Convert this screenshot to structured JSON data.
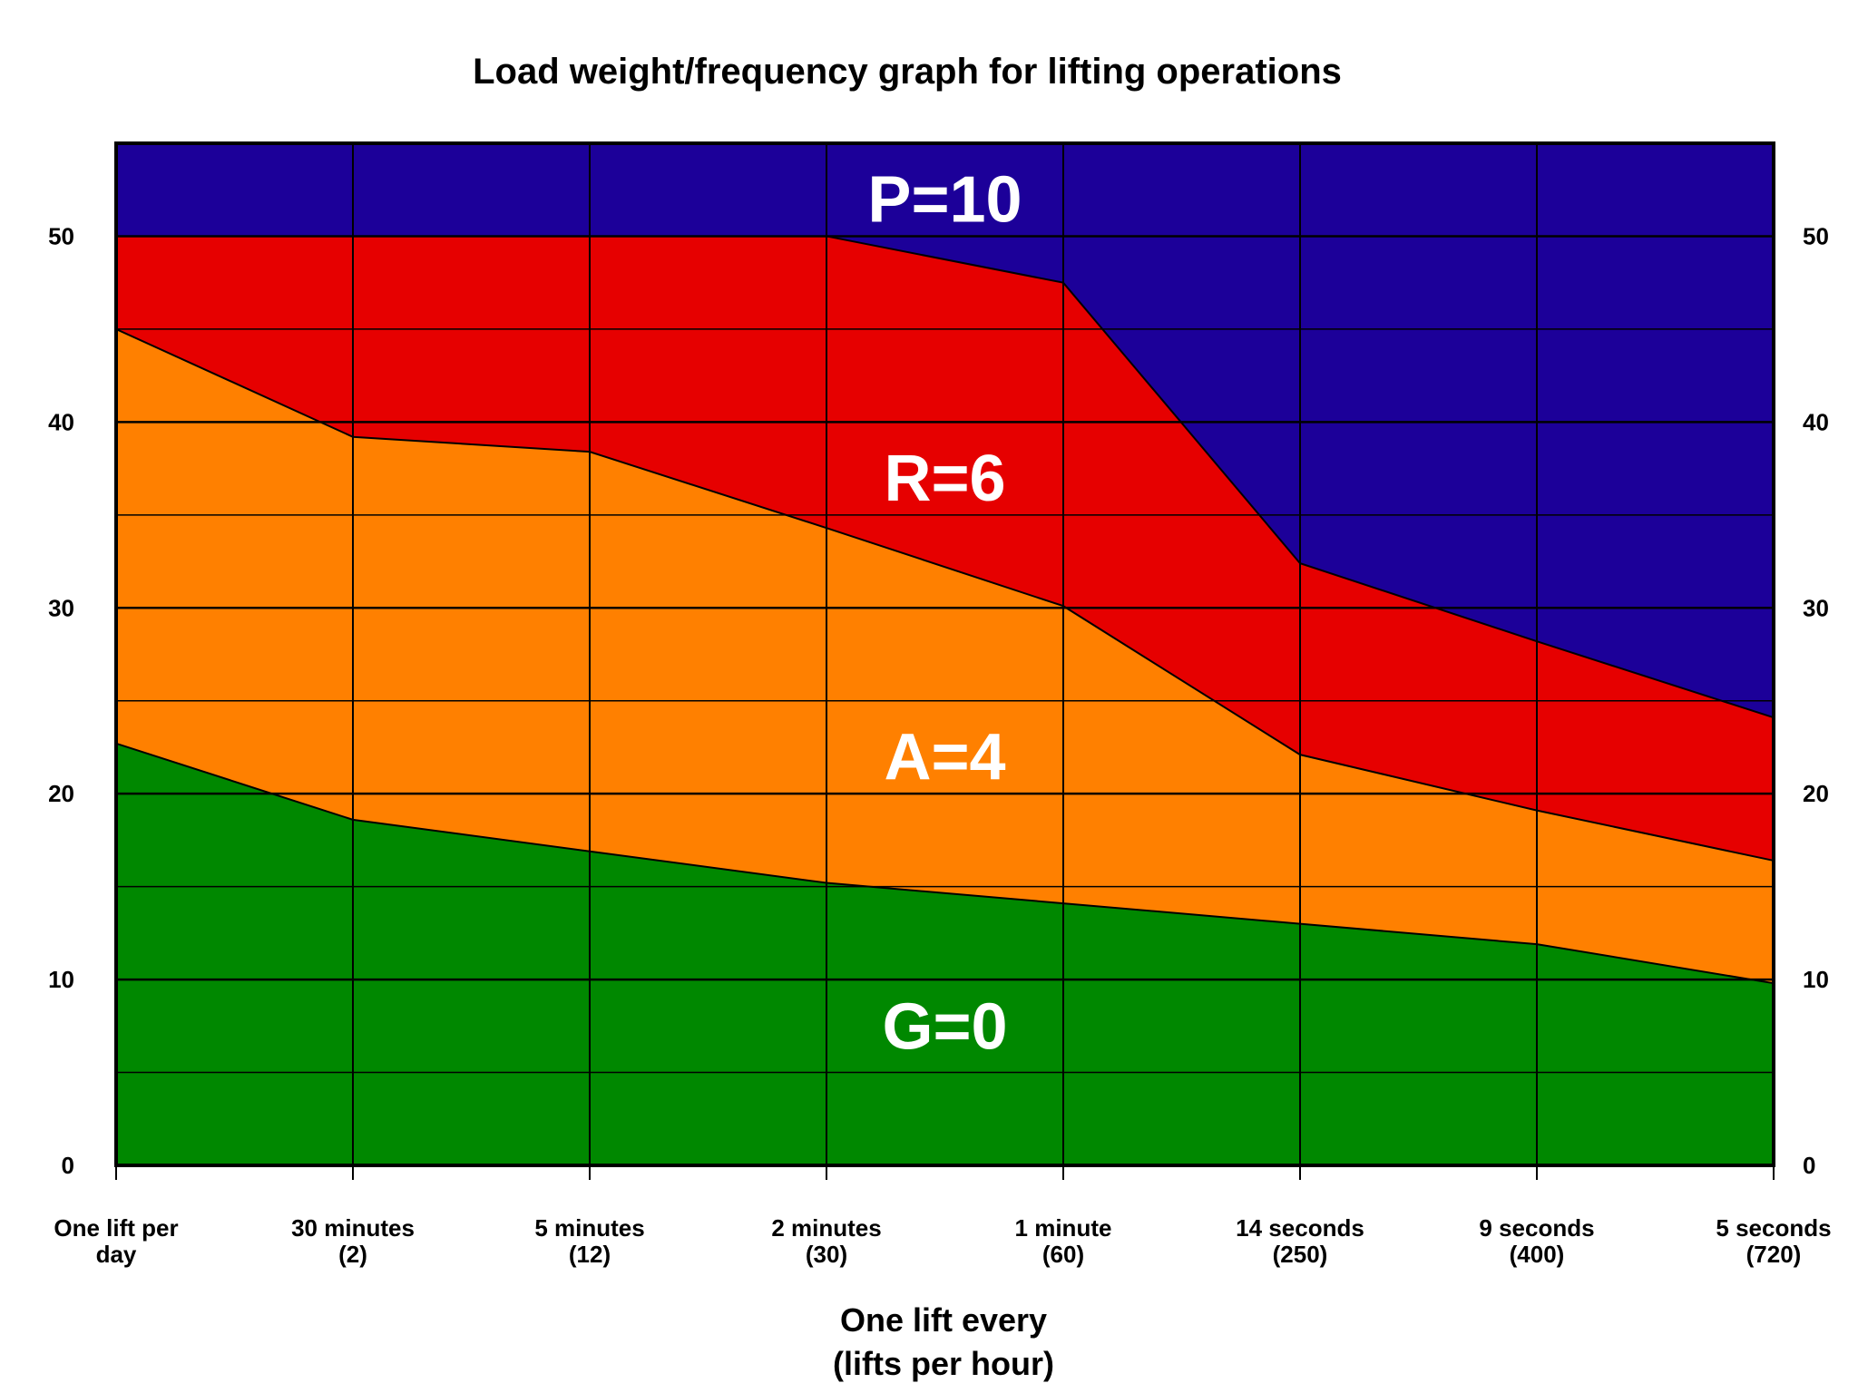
{
  "chart_data": {
    "type": "area",
    "title": "Load weight/frequency graph for lifting operations",
    "xlabel_line1": "One lift every",
    "xlabel_line2": "(lifts per hour)",
    "ylabel": "",
    "ylim": [
      0,
      55
    ],
    "yticks": [
      0,
      10,
      20,
      30,
      40,
      50
    ],
    "categories": [
      {
        "line1": "One lift per",
        "line2": "day"
      },
      {
        "line1": "30 minutes",
        "line2": "(2)"
      },
      {
        "line1": "5 minutes",
        "line2": "(12)"
      },
      {
        "line1": "2 minutes",
        "line2": "(30)"
      },
      {
        "line1": "1 minute",
        "line2": "(60)"
      },
      {
        "line1": "14 seconds",
        "line2": "(250)"
      },
      {
        "line1": "9 seconds",
        "line2": "(400)"
      },
      {
        "line1": "5 seconds",
        "line2": "(720)"
      }
    ],
    "boundaries": [
      {
        "name": "G/A",
        "values": [
          22.7,
          18.6,
          16.9,
          15.2,
          14.1,
          13.0,
          11.9,
          9.8
        ]
      },
      {
        "name": "A/R",
        "values": [
          45.0,
          39.2,
          38.4,
          34.3,
          30.1,
          22.1,
          19.1,
          16.4
        ]
      },
      {
        "name": "R/P",
        "values": [
          50.0,
          50.0,
          50.0,
          50.0,
          47.5,
          32.4,
          28.2,
          24.1
        ]
      }
    ],
    "bands": [
      {
        "name": "G=0",
        "color": "#008800"
      },
      {
        "name": "A=4",
        "color": "#ff8000"
      },
      {
        "name": "R=6",
        "color": "#e60000"
      },
      {
        "name": "P=10",
        "color": "#1c0099"
      }
    ],
    "grid": true,
    "grid_minor_step": 5
  }
}
